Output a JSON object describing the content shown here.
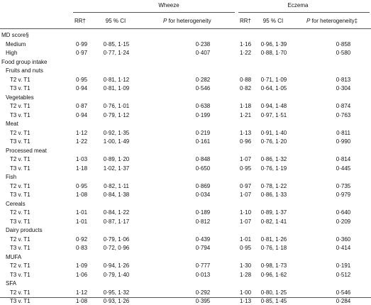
{
  "groups": {
    "wheeze": "Wheeze",
    "eczema": "Eczema"
  },
  "columns": {
    "wheeze": {
      "rr": "RR†",
      "ci": "95 % CI",
      "p_italic": "P",
      "p_rest": " for heterogeneity"
    },
    "eczema": {
      "rr": "RR†",
      "ci": "95 % CI",
      "p_italic": "P",
      "p_rest": " for heterogeneity‡"
    }
  },
  "rows": [
    {
      "label": "MD score§",
      "level": 0
    },
    {
      "label": "Medium",
      "level": 1,
      "w_rr": "0·99",
      "w_ci": "0·85, 1·15",
      "w_p": "0·238",
      "e_rr": "1·16",
      "e_ci": "0·96, 1·39",
      "e_p": "0·858"
    },
    {
      "label": "High",
      "level": 1,
      "w_rr": "0·97",
      "w_ci": "0·77, 1·24",
      "w_p": "0·407",
      "e_rr": "1·22",
      "e_ci": "0·88, 1·70",
      "e_p": "0·580"
    },
    {
      "label": "Food group intake",
      "level": 0
    },
    {
      "label": "Fruits and nuts",
      "level": 1
    },
    {
      "label": "T2 v. T1",
      "level": 2,
      "w_rr": "0·95",
      "w_ci": "0·81, 1·12",
      "w_p": "0·282",
      "e_rr": "0·88",
      "e_ci": "0·71, 1·09",
      "e_p": "0·813"
    },
    {
      "label": "T3 v. T1",
      "level": 2,
      "w_rr": "0·94",
      "w_ci": "0·81, 1·09",
      "w_p": "0·546",
      "e_rr": "0·82",
      "e_ci": "0·64, 1·05",
      "e_p": "0·304"
    },
    {
      "label": "Vegetables",
      "level": 1
    },
    {
      "label": "T2 v. T1",
      "level": 2,
      "w_rr": "0·87",
      "w_ci": "0·76, 1·01",
      "w_p": "0·638",
      "e_rr": "1·18",
      "e_ci": "0·94, 1·48",
      "e_p": "0·874"
    },
    {
      "label": "T3 v. T1",
      "level": 2,
      "w_rr": "0·94",
      "w_ci": "0·79, 1·12",
      "w_p": "0·199",
      "e_rr": "1·21",
      "e_ci": "0·97, 1·51",
      "e_p": "0·763"
    },
    {
      "label": "Meat",
      "level": 1
    },
    {
      "label": "T2 v. T1",
      "level": 2,
      "w_rr": "1·12",
      "w_ci": "0·92, 1·35",
      "w_p": "0·219",
      "e_rr": "1·13",
      "e_ci": "0·91, 1·40",
      "e_p": "0·811"
    },
    {
      "label": "T3 v. T1",
      "level": 2,
      "w_rr": "1·22",
      "w_ci": "1·00, 1·49",
      "w_p": "0·161",
      "e_rr": "0·96",
      "e_ci": "0·76, 1·20",
      "e_p": "0·990"
    },
    {
      "label": "Processed meat",
      "level": 1
    },
    {
      "label": "T2 v. T1",
      "level": 2,
      "w_rr": "1·03",
      "w_ci": "0·89, 1·20",
      "w_p": "0·848",
      "e_rr": "1·07",
      "e_ci": "0·86, 1·32",
      "e_p": "0·814"
    },
    {
      "label": "T3 v. T1",
      "level": 2,
      "w_rr": "1·18",
      "w_ci": "1·02, 1·37",
      "w_p": "0·650",
      "e_rr": "0·95",
      "e_ci": "0·76, 1·19",
      "e_p": "0·445"
    },
    {
      "label": "Fish",
      "level": 1
    },
    {
      "label": "T2 v. T1",
      "level": 2,
      "w_rr": "0·95",
      "w_ci": "0·82, 1·11",
      "w_p": "0·869",
      "e_rr": "0·97",
      "e_ci": "0·78, 1·22",
      "e_p": "0·735"
    },
    {
      "label": "T3 v. T1",
      "level": 2,
      "w_rr": "1·08",
      "w_ci": "0·84, 1·38",
      "w_p": "0·034",
      "e_rr": "1·07",
      "e_ci": "0·86, 1·33",
      "e_p": "0·979"
    },
    {
      "label": "Cereals",
      "level": 1
    },
    {
      "label": "T2 v. T1",
      "level": 2,
      "w_rr": "1·01",
      "w_ci": "0·84, 1·22",
      "w_p": "0·189",
      "e_rr": "1·10",
      "e_ci": "0·89, 1·37",
      "e_p": "0·640"
    },
    {
      "label": "T3 v. T1",
      "level": 2,
      "w_rr": "1·01",
      "w_ci": "0·87, 1·17",
      "w_p": "0·812",
      "e_rr": "1·07",
      "e_ci": "0·82, 1·41",
      "e_p": "0·209"
    },
    {
      "label": "Dairy products",
      "level": 1
    },
    {
      "label": "T2 v. T1",
      "level": 2,
      "w_rr": "0·92",
      "w_ci": "0·79, 1·06",
      "w_p": "0·439",
      "e_rr": "1·01",
      "e_ci": "0·81, 1·26",
      "e_p": "0·360"
    },
    {
      "label": "T3 v. T1",
      "level": 2,
      "w_rr": "0·83",
      "w_ci": "0·72, 0·96",
      "w_p": "0·794",
      "e_rr": "0·95",
      "e_ci": "0·76, 1·18",
      "e_p": "0·414"
    },
    {
      "label": "MUFA",
      "level": 1
    },
    {
      "label": "T2 v. T1",
      "level": 2,
      "w_rr": "1·09",
      "w_ci": "0·94, 1·26",
      "w_p": "0·777",
      "e_rr": "1·30",
      "e_ci": "0·98, 1·73",
      "e_p": "0·191"
    },
    {
      "label": "T3 v. T1",
      "level": 2,
      "w_rr": "1·06",
      "w_ci": "0·79, 1·40",
      "w_p": "0·013",
      "e_rr": "1·28",
      "e_ci": "0·96, 1·62",
      "e_p": "0·512"
    },
    {
      "label": "SFA",
      "level": 1
    },
    {
      "label": "T2 v. T1",
      "level": 2,
      "w_rr": "1·12",
      "w_ci": "0·95, 1·32",
      "w_p": "0·292",
      "e_rr": "1·00",
      "e_ci": "0·80, 1·25",
      "e_p": "0·546"
    },
    {
      "label": "T3 v. T1",
      "level": 2,
      "w_rr": "1·08",
      "w_ci": "0·93, 1·26",
      "w_p": "0·395",
      "e_rr": "1·13",
      "e_ci": "0·85, 1·45",
      "e_p": "0·284"
    }
  ]
}
